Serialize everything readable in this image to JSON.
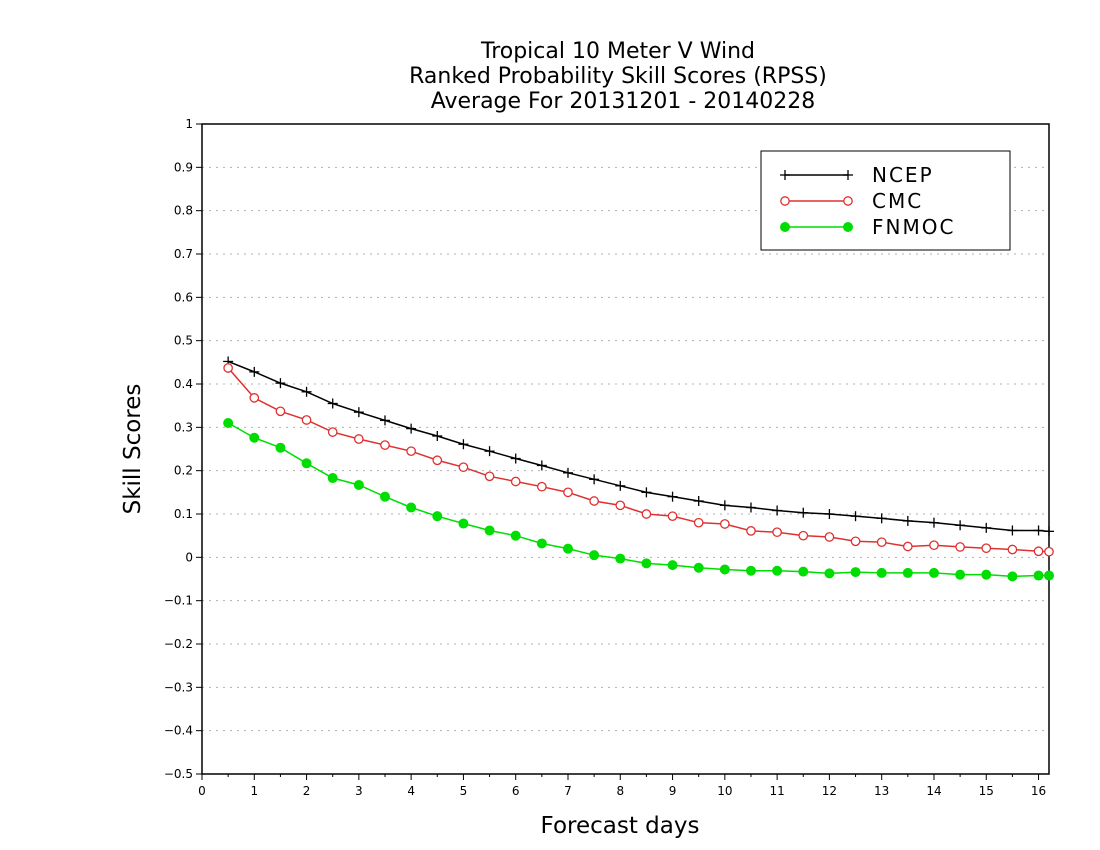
{
  "chart_data": {
    "type": "line",
    "title": [
      "Tropical 10 Meter V Wind",
      "Ranked Probability Skill Scores (RPSS)",
      "Average For 20131201 - 20140228"
    ],
    "xlabel": "Forecast days",
    "ylabel": "Skill Scores",
    "xlim": [
      0,
      16.2
    ],
    "ylim": [
      -0.5,
      1
    ],
    "xticks": [
      "0",
      "1",
      "2",
      "3",
      "4",
      "5",
      "6",
      "7",
      "8",
      "9",
      "10",
      "11",
      "12",
      "13",
      "14",
      "15",
      "16"
    ],
    "yticks": [
      "−0.5",
      "−0.4",
      "−0.3",
      "−0.2",
      "−0.1",
      "0",
      "0.1",
      "0.2",
      "0.3",
      "0.4",
      "0.5",
      "0.6",
      "0.7",
      "0.8",
      "0.9",
      "1"
    ],
    "grid": "horizontal-dotted",
    "legend_position": "top-right",
    "x": [
      0.5,
      1,
      1.5,
      2,
      2.5,
      3,
      3.5,
      4,
      4.5,
      5,
      5.5,
      6,
      6.5,
      7,
      7.5,
      8,
      8.5,
      9,
      9.5,
      10,
      10.5,
      11,
      11.5,
      12,
      12.5,
      13,
      13.5,
      14,
      14.5,
      15,
      15.5,
      16,
      16.2
    ],
    "series": [
      {
        "name": "NCEP",
        "color": "#000000",
        "marker": "plus",
        "values": [
          0.452,
          0.428,
          0.402,
          0.382,
          0.355,
          0.335,
          0.316,
          0.297,
          0.28,
          0.261,
          0.245,
          0.228,
          0.212,
          0.195,
          0.18,
          0.165,
          0.15,
          0.14,
          0.13,
          0.12,
          0.115,
          0.108,
          0.103,
          0.1,
          0.095,
          0.09,
          0.084,
          0.08,
          0.074,
          0.068,
          0.062,
          0.062,
          0.06
        ]
      },
      {
        "name": "CMC",
        "color": "#e03030",
        "marker": "open-circle",
        "values": [
          0.437,
          0.368,
          0.337,
          0.317,
          0.289,
          0.273,
          0.259,
          0.245,
          0.224,
          0.208,
          0.187,
          0.175,
          0.163,
          0.15,
          0.13,
          0.12,
          0.1,
          0.095,
          0.08,
          0.077,
          0.061,
          0.058,
          0.05,
          0.047,
          0.037,
          0.035,
          0.025,
          0.028,
          0.024,
          0.021,
          0.018,
          0.014,
          0.013
        ]
      },
      {
        "name": "FNMOC",
        "color": "#00dd00",
        "marker": "filled-circle",
        "values": [
          0.31,
          0.276,
          0.253,
          0.217,
          0.183,
          0.167,
          0.14,
          0.115,
          0.095,
          0.078,
          0.062,
          0.05,
          0.032,
          0.02,
          0.005,
          -0.003,
          -0.014,
          -0.018,
          -0.024,
          -0.028,
          -0.031,
          -0.031,
          -0.033,
          -0.037,
          -0.034,
          -0.036,
          -0.036,
          -0.036,
          -0.04,
          -0.04,
          -0.044,
          -0.042,
          -0.042
        ]
      }
    ]
  }
}
